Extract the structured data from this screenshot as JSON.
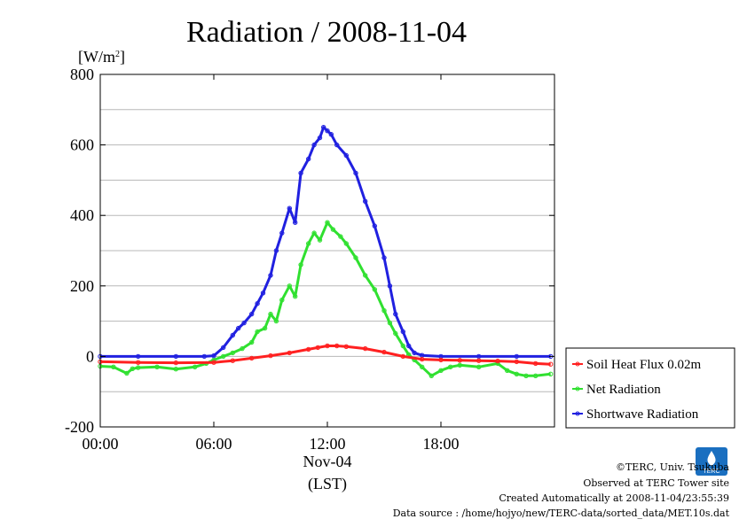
{
  "chart_data": {
    "type": "line",
    "title": "Radiation / 2008-11-04",
    "ylabel_prefix": "[W/m",
    "ylabel_sup": "2",
    "ylabel_suffix": "]",
    "xlabel_date": "Nov-04",
    "xlabel_unit": "(LST)",
    "ylim": [
      -200,
      800
    ],
    "xlim": [
      0,
      24
    ],
    "yticks": [
      {
        "v": 800,
        "label": "800"
      },
      {
        "v": 600,
        "label": "600"
      },
      {
        "v": 400,
        "label": "400"
      },
      {
        "v": 200,
        "label": "200"
      },
      {
        "v": 0,
        "label": "0"
      },
      {
        "v": -200,
        "label": "-200"
      }
    ],
    "xticks": [
      {
        "v": 0,
        "label": "00:00"
      },
      {
        "v": 6,
        "label": "06:00"
      },
      {
        "v": 12,
        "label": "12:00"
      },
      {
        "v": 18,
        "label": "18:00"
      }
    ],
    "grid": true,
    "legend_position": "right",
    "series": [
      {
        "name": "Soil Heat Flux 0.02m",
        "color": "#ff2020",
        "x": [
          0,
          2,
          4,
          6,
          7,
          8,
          9,
          10,
          11,
          11.5,
          12,
          12.5,
          13,
          14,
          15,
          16,
          17,
          18,
          19,
          20,
          21,
          22,
          23,
          23.8
        ],
        "values": [
          -15,
          -17,
          -18,
          -17,
          -12,
          -5,
          2,
          10,
          20,
          25,
          30,
          30,
          28,
          22,
          12,
          0,
          -8,
          -10,
          -11,
          -12,
          -13,
          -15,
          -20,
          -22
        ]
      },
      {
        "name": "Net Radiation",
        "color": "#30e030",
        "x": [
          0,
          0.7,
          1.4,
          1.7,
          2,
          3,
          4,
          5,
          5.6,
          6,
          6.5,
          7,
          7.5,
          8,
          8.3,
          8.7,
          9,
          9.3,
          9.6,
          10,
          10.3,
          10.6,
          11,
          11.3,
          11.6,
          12,
          12.3,
          12.7,
          13,
          13.5,
          14,
          14.5,
          15,
          15.3,
          15.6,
          16,
          16.3,
          16.6,
          17,
          17.5,
          18,
          18.5,
          19,
          20,
          21,
          21.5,
          22,
          22.5,
          23,
          23.8
        ],
        "values": [
          -28,
          -30,
          -48,
          -35,
          -32,
          -30,
          -36,
          -30,
          -20,
          -10,
          0,
          10,
          22,
          40,
          70,
          80,
          120,
          100,
          160,
          200,
          170,
          260,
          320,
          350,
          330,
          380,
          360,
          340,
          320,
          280,
          230,
          190,
          130,
          95,
          65,
          30,
          5,
          -10,
          -30,
          -55,
          -40,
          -30,
          -25,
          -30,
          -20,
          -40,
          -50,
          -55,
          -55,
          -50
        ]
      },
      {
        "name": "Shortwave Radiation",
        "color": "#2020e0",
        "x": [
          0,
          2,
          4,
          5.5,
          6,
          6.5,
          7,
          7.3,
          7.6,
          8,
          8.3,
          8.6,
          9,
          9.3,
          9.6,
          10,
          10.3,
          10.6,
          11,
          11.3,
          11.6,
          11.8,
          12,
          12.2,
          12.5,
          13,
          13.5,
          14,
          14.5,
          15,
          15.3,
          15.6,
          16,
          16.3,
          16.6,
          17,
          18,
          20,
          22,
          23.8
        ],
        "values": [
          0,
          0,
          0,
          0,
          2,
          25,
          60,
          80,
          95,
          120,
          150,
          180,
          230,
          300,
          350,
          420,
          380,
          520,
          560,
          600,
          620,
          650,
          640,
          630,
          600,
          570,
          520,
          440,
          370,
          280,
          200,
          120,
          70,
          30,
          10,
          3,
          0,
          0,
          0,
          0
        ]
      }
    ]
  },
  "credits": {
    "copyright": "©TERC, Univ. Tsukuba",
    "observed": "Observed at TERC Tower site",
    "created": "Created Automatically at 2008-11-04/23:55:39",
    "source": "Data source : /home/hojyo/new/TERC-data/sorted_data/MET.10s.dat",
    "logo_text": "TERC"
  }
}
